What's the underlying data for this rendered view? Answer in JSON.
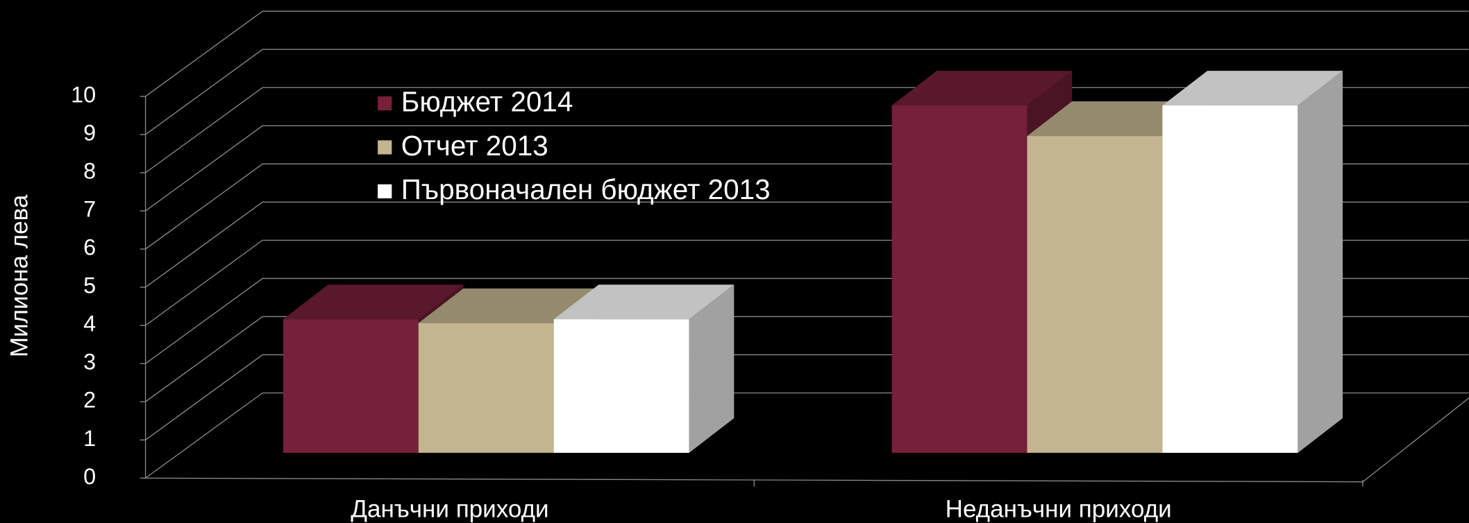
{
  "chart_data": {
    "type": "bar3d",
    "ylabel": "Милиона лева",
    "categories": [
      "Данъчни приходи",
      "Неданъчни приходи"
    ],
    "series": [
      {
        "name": "Бюджет 2014",
        "color": "#76203a",
        "values": [
          3.5,
          9.1
        ]
      },
      {
        "name": "Отчет 2013",
        "color": "#c4b591",
        "values": [
          3.4,
          8.3
        ]
      },
      {
        "name": "Първоначален бюджет 2013",
        "color": "#ffffff",
        "values": [
          3.5,
          9.1
        ]
      }
    ],
    "ylim": [
      0,
      10
    ],
    "yticks": [
      0,
      1,
      2,
      3,
      4,
      5,
      6,
      7,
      8,
      9,
      10
    ],
    "grid": true,
    "legend": "top-left"
  }
}
